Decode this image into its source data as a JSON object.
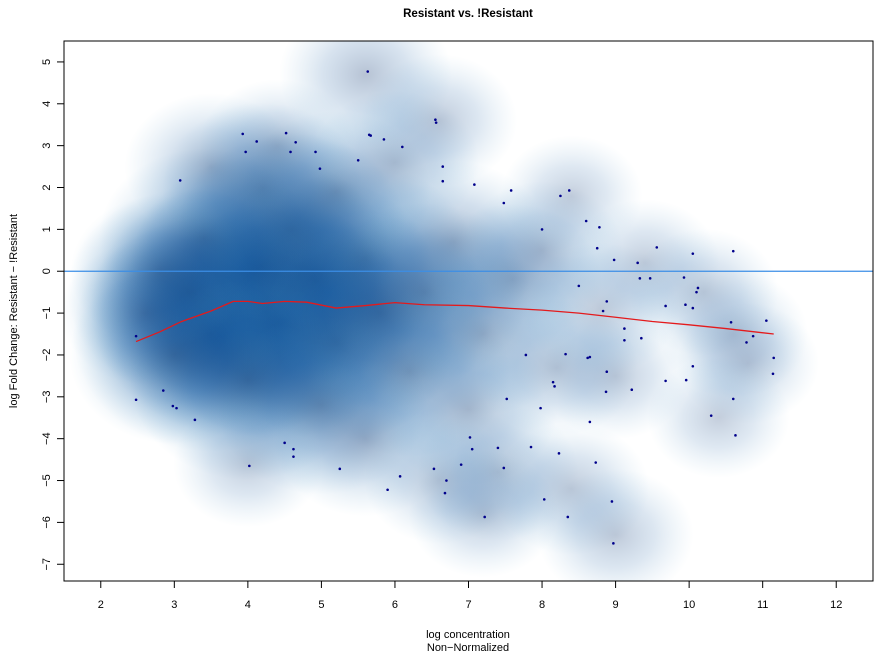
{
  "chart_data": {
    "type": "scatter",
    "title": "Resistant vs. !Resistant",
    "xlabel": "log concentration",
    "xlabel_sub": "Non−Normalized",
    "ylabel": "log Fold Change: Resistant − !Resistant",
    "xlim": [
      1.5,
      12.5
    ],
    "ylim": [
      -7.4,
      5.5
    ],
    "x_ticks": [
      2,
      3,
      4,
      5,
      6,
      7,
      8,
      9,
      10,
      11,
      12
    ],
    "x_tick_labels": [
      "2",
      "3",
      "4",
      "5",
      "6",
      "7",
      "8",
      "9",
      "10",
      "11",
      "12"
    ],
    "y_ticks": [
      5,
      4,
      3,
      2,
      1,
      0,
      -1,
      -2,
      -3,
      -4,
      -5,
      -6,
      -7
    ],
    "y_tick_labels": [
      "5",
      "4",
      "3",
      "2",
      "1",
      "0",
      "−1",
      "−2",
      "−3",
      "−4",
      "−5",
      "−6",
      "−7"
    ],
    "colors": {
      "density": "#08306b",
      "points": "#00008b",
      "zero_line": "#3b8ee6",
      "loess": "#e41a1c"
    },
    "reference_line": {
      "y": 0
    },
    "loess_curve": [
      {
        "x": 2.48,
        "y": -1.68
      },
      {
        "x": 2.8,
        "y": -1.45
      },
      {
        "x": 3.1,
        "y": -1.2
      },
      {
        "x": 3.5,
        "y": -0.95
      },
      {
        "x": 3.8,
        "y": -0.72
      },
      {
        "x": 4.0,
        "y": -0.72
      },
      {
        "x": 4.2,
        "y": -0.77
      },
      {
        "x": 4.5,
        "y": -0.72
      },
      {
        "x": 4.8,
        "y": -0.74
      },
      {
        "x": 5.2,
        "y": -0.88
      },
      {
        "x": 5.6,
        "y": -0.82
      },
      {
        "x": 6.0,
        "y": -0.75
      },
      {
        "x": 6.4,
        "y": -0.8
      },
      {
        "x": 7.0,
        "y": -0.82
      },
      {
        "x": 7.5,
        "y": -0.88
      },
      {
        "x": 8.0,
        "y": -0.93
      },
      {
        "x": 8.5,
        "y": -1.0
      },
      {
        "x": 9.0,
        "y": -1.1
      },
      {
        "x": 9.5,
        "y": -1.2
      },
      {
        "x": 10.0,
        "y": -1.28
      },
      {
        "x": 10.5,
        "y": -1.37
      },
      {
        "x": 11.15,
        "y": -1.5
      }
    ],
    "density": [
      {
        "x": 3.9,
        "y": -0.9,
        "w": 1.0
      },
      {
        "x": 3.5,
        "y": -1.5,
        "w": 0.8
      },
      {
        "x": 4.4,
        "y": -1.2,
        "w": 0.8
      },
      {
        "x": 4.2,
        "y": 0.1,
        "w": 0.7
      },
      {
        "x": 3.2,
        "y": -0.5,
        "w": 0.55
      },
      {
        "x": 4.9,
        "y": -0.2,
        "w": 0.55
      },
      {
        "x": 5.2,
        "y": -1.7,
        "w": 0.5
      },
      {
        "x": 4.0,
        "y": -2.6,
        "w": 0.5
      },
      {
        "x": 4.6,
        "y": 1.0,
        "w": 0.45
      },
      {
        "x": 5.6,
        "y": 0.3,
        "w": 0.4
      },
      {
        "x": 5.8,
        "y": -1.0,
        "w": 0.45
      },
      {
        "x": 3.4,
        "y": 0.8,
        "w": 0.35
      },
      {
        "x": 3.0,
        "y": -2.0,
        "w": 0.35
      },
      {
        "x": 5.0,
        "y": -3.2,
        "w": 0.35
      },
      {
        "x": 6.4,
        "y": -0.5,
        "w": 0.35
      },
      {
        "x": 6.2,
        "y": -2.4,
        "w": 0.3
      },
      {
        "x": 4.2,
        "y": 2.0,
        "w": 0.3
      },
      {
        "x": 5.2,
        "y": 1.9,
        "w": 0.25
      },
      {
        "x": 6.8,
        "y": 0.7,
        "w": 0.25
      },
      {
        "x": 7.2,
        "y": -1.5,
        "w": 0.25
      },
      {
        "x": 5.6,
        "y": -4.0,
        "w": 0.22
      },
      {
        "x": 7.0,
        "y": -3.3,
        "w": 0.2
      },
      {
        "x": 7.6,
        "y": -0.2,
        "w": 0.2
      },
      {
        "x": 3.5,
        "y": 2.5,
        "w": 0.18
      },
      {
        "x": 6.0,
        "y": 2.6,
        "w": 0.16
      },
      {
        "x": 8.0,
        "y": 0.5,
        "w": 0.14
      },
      {
        "x": 8.2,
        "y": -2.3,
        "w": 0.14
      },
      {
        "x": 7.4,
        "y": -4.8,
        "w": 0.14
      },
      {
        "x": 2.8,
        "y": 0.0,
        "w": 0.2
      },
      {
        "x": 2.6,
        "y": -1.0,
        "w": 0.16
      },
      {
        "x": 4.4,
        "y": 3.0,
        "w": 0.12
      },
      {
        "x": 5.6,
        "y": 4.7,
        "w": 0.18
      },
      {
        "x": 6.6,
        "y": 3.6,
        "w": 0.12
      },
      {
        "x": 8.8,
        "y": -0.9,
        "w": 0.12
      },
      {
        "x": 9.4,
        "y": 0.2,
        "w": 0.1
      },
      {
        "x": 9.0,
        "y": -2.5,
        "w": 0.1
      },
      {
        "x": 10.2,
        "y": -0.5,
        "w": 0.1
      },
      {
        "x": 10.6,
        "y": -1.5,
        "w": 0.1
      },
      {
        "x": 8.4,
        "y": -5.2,
        "w": 0.12
      },
      {
        "x": 9.0,
        "y": -6.3,
        "w": 0.12
      },
      {
        "x": 10.8,
        "y": -2.2,
        "w": 0.08
      },
      {
        "x": 7.2,
        "y": -5.8,
        "w": 0.1
      },
      {
        "x": 6.6,
        "y": -5.0,
        "w": 0.1
      },
      {
        "x": 4.0,
        "y": -4.6,
        "w": 0.1
      },
      {
        "x": 8.4,
        "y": 1.8,
        "w": 0.08
      },
      {
        "x": 10.4,
        "y": -3.5,
        "w": 0.08
      }
    ],
    "points": [
      {
        "x": 5.63,
        "y": 4.77
      },
      {
        "x": 6.55,
        "y": 3.62
      },
      {
        "x": 6.56,
        "y": 3.55
      },
      {
        "x": 3.93,
        "y": 3.28
      },
      {
        "x": 4.52,
        "y": 3.3
      },
      {
        "x": 5.65,
        "y": 3.26
      },
      {
        "x": 5.67,
        "y": 3.24
      },
      {
        "x": 5.85,
        "y": 3.15
      },
      {
        "x": 4.12,
        "y": 3.1
      },
      {
        "x": 4.65,
        "y": 3.08
      },
      {
        "x": 6.1,
        "y": 2.97
      },
      {
        "x": 3.97,
        "y": 2.85
      },
      {
        "x": 4.58,
        "y": 2.85
      },
      {
        "x": 4.92,
        "y": 2.85
      },
      {
        "x": 5.5,
        "y": 2.65
      },
      {
        "x": 4.98,
        "y": 2.45
      },
      {
        "x": 6.65,
        "y": 2.5
      },
      {
        "x": 3.08,
        "y": 2.17
      },
      {
        "x": 6.65,
        "y": 2.15
      },
      {
        "x": 7.08,
        "y": 2.07
      },
      {
        "x": 7.58,
        "y": 1.93
      },
      {
        "x": 8.37,
        "y": 1.93
      },
      {
        "x": 8.25,
        "y": 1.8
      },
      {
        "x": 7.48,
        "y": 1.63
      },
      {
        "x": 8.6,
        "y": 1.2
      },
      {
        "x": 8.78,
        "y": 1.05
      },
      {
        "x": 8.0,
        "y": 1.0
      },
      {
        "x": 9.56,
        "y": 0.57
      },
      {
        "x": 8.75,
        "y": 0.55
      },
      {
        "x": 10.6,
        "y": 0.48
      },
      {
        "x": 10.05,
        "y": 0.42
      },
      {
        "x": 8.98,
        "y": 0.27
      },
      {
        "x": 9.3,
        "y": 0.2
      },
      {
        "x": 9.93,
        "y": -0.15
      },
      {
        "x": 9.33,
        "y": -0.17
      },
      {
        "x": 9.47,
        "y": -0.17
      },
      {
        "x": 8.5,
        "y": -0.35
      },
      {
        "x": 10.12,
        "y": -0.4
      },
      {
        "x": 10.1,
        "y": -0.5
      },
      {
        "x": 8.88,
        "y": -0.72
      },
      {
        "x": 9.68,
        "y": -0.83
      },
      {
        "x": 9.95,
        "y": -0.8
      },
      {
        "x": 10.05,
        "y": -0.88
      },
      {
        "x": 8.83,
        "y": -0.95
      },
      {
        "x": 11.05,
        "y": -1.18
      },
      {
        "x": 10.57,
        "y": -1.22
      },
      {
        "x": 9.12,
        "y": -1.37
      },
      {
        "x": 2.48,
        "y": -1.55
      },
      {
        "x": 10.87,
        "y": -1.55
      },
      {
        "x": 9.35,
        "y": -1.6
      },
      {
        "x": 9.12,
        "y": -1.65
      },
      {
        "x": 10.78,
        "y": -1.7
      },
      {
        "x": 7.78,
        "y": -2.0
      },
      {
        "x": 8.32,
        "y": -1.98
      },
      {
        "x": 8.65,
        "y": -2.05
      },
      {
        "x": 8.62,
        "y": -2.07
      },
      {
        "x": 11.15,
        "y": -2.07
      },
      {
        "x": 10.05,
        "y": -2.27
      },
      {
        "x": 8.88,
        "y": -2.4
      },
      {
        "x": 11.14,
        "y": -2.45
      },
      {
        "x": 9.68,
        "y": -2.62
      },
      {
        "x": 9.96,
        "y": -2.6
      },
      {
        "x": 8.15,
        "y": -2.65
      },
      {
        "x": 8.17,
        "y": -2.75
      },
      {
        "x": 9.22,
        "y": -2.83
      },
      {
        "x": 2.85,
        "y": -2.85
      },
      {
        "x": 8.87,
        "y": -2.88
      },
      {
        "x": 10.6,
        "y": -3.05
      },
      {
        "x": 2.48,
        "y": -3.07
      },
      {
        "x": 7.52,
        "y": -3.05
      },
      {
        "x": 2.98,
        "y": -3.22
      },
      {
        "x": 3.03,
        "y": -3.27
      },
      {
        "x": 7.98,
        "y": -3.27
      },
      {
        "x": 10.3,
        "y": -3.45
      },
      {
        "x": 3.28,
        "y": -3.55
      },
      {
        "x": 8.65,
        "y": -3.6
      },
      {
        "x": 10.63,
        "y": -3.92
      },
      {
        "x": 7.02,
        "y": -3.97
      },
      {
        "x": 4.5,
        "y": -4.1
      },
      {
        "x": 7.85,
        "y": -4.2
      },
      {
        "x": 7.05,
        "y": -4.25
      },
      {
        "x": 7.4,
        "y": -4.22
      },
      {
        "x": 4.62,
        "y": -4.25
      },
      {
        "x": 4.62,
        "y": -4.43
      },
      {
        "x": 8.23,
        "y": -4.35
      },
      {
        "x": 8.73,
        "y": -4.57
      },
      {
        "x": 6.9,
        "y": -4.62
      },
      {
        "x": 4.02,
        "y": -4.65
      },
      {
        "x": 5.25,
        "y": -4.72
      },
      {
        "x": 6.53,
        "y": -4.72
      },
      {
        "x": 7.48,
        "y": -4.7
      },
      {
        "x": 6.07,
        "y": -4.9
      },
      {
        "x": 6.7,
        "y": -5.0
      },
      {
        "x": 5.9,
        "y": -5.22
      },
      {
        "x": 6.68,
        "y": -5.3
      },
      {
        "x": 8.03,
        "y": -5.45
      },
      {
        "x": 8.95,
        "y": -5.5
      },
      {
        "x": 7.22,
        "y": -5.87
      },
      {
        "x": 8.35,
        "y": -5.87
      },
      {
        "x": 8.97,
        "y": -6.5
      }
    ]
  }
}
